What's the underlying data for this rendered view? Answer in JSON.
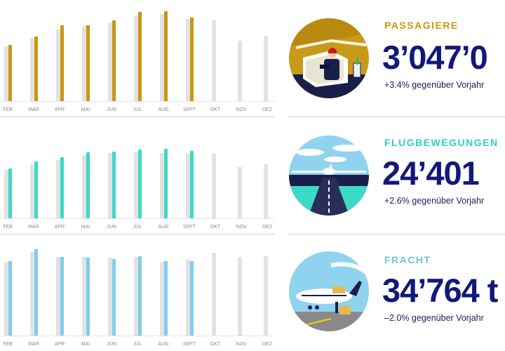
{
  "colors": {
    "passagiere": "#c9980f",
    "flugbewegungen": "#3dd9c7",
    "fracht": "#7fcdf0",
    "previous_year_bar": "#e2e2e2",
    "value_text": "#12187a"
  },
  "panels": [
    {
      "label": "PASSAGIERE",
      "value": "3’047’0",
      "delta": "+3.4% gegenüber Vorjahr",
      "icon": "passenger-lounge-illustration"
    },
    {
      "label": "FLUGBEWEGUNGEN",
      "value": "24’401",
      "delta": "+2.6% gegenüber Vorjahr",
      "icon": "runway-airplane-illustration"
    },
    {
      "label": "FRACHT",
      "value": "34’764 t",
      "delta": "–2.0% gegenüber Vorjahr",
      "icon": "cargo-airplane-illustration"
    }
  ],
  "chart_data": [
    {
      "type": "bar",
      "categories": [
        "FEB",
        "MAR",
        "APR",
        "MAI",
        "JUN",
        "JUL",
        "AUG",
        "SEPT",
        "OKT",
        "NOV",
        "DEZ"
      ],
      "series": [
        {
          "values": [
            78,
            90,
            102,
            107,
            112,
            122,
            124,
            117,
            115,
            86,
            93
          ]
        },
        {
          "values": [
            80,
            92,
            108,
            108,
            115,
            127,
            128,
            119,
            null,
            null,
            null
          ]
        }
      ],
      "ylim": [
        0,
        130
      ]
    },
    {
      "type": "bar",
      "categories": [
        "FEB",
        "MAR",
        "APR",
        "MAI",
        "JUN",
        "JUL",
        "AUG",
        "SEPT",
        "OKT",
        "NOV",
        "DEZ"
      ],
      "series": [
        {
          "values": [
            69,
            77,
            83,
            90,
            93,
            95,
            93,
            92,
            92,
            73,
            77
          ]
        },
        {
          "values": [
            71,
            81,
            87,
            94,
            95,
            98,
            99,
            96,
            null,
            null,
            null
          ]
        }
      ],
      "ylim": [
        0,
        130
      ]
    },
    {
      "type": "bar",
      "categories": [
        "FEB",
        "MAR",
        "APR",
        "MAI",
        "JUN",
        "JUL",
        "AUG",
        "SEPT",
        "OKT",
        "NOV",
        "DEZ"
      ],
      "series": [
        {
          "values": [
            105,
            119,
            112,
            112,
            111,
            112,
            105,
            108,
            118,
            112,
            113
          ]
        },
        {
          "values": [
            106,
            123,
            112,
            111,
            109,
            113,
            106,
            106,
            null,
            null,
            null
          ]
        }
      ],
      "ylim": [
        0,
        130
      ]
    }
  ]
}
